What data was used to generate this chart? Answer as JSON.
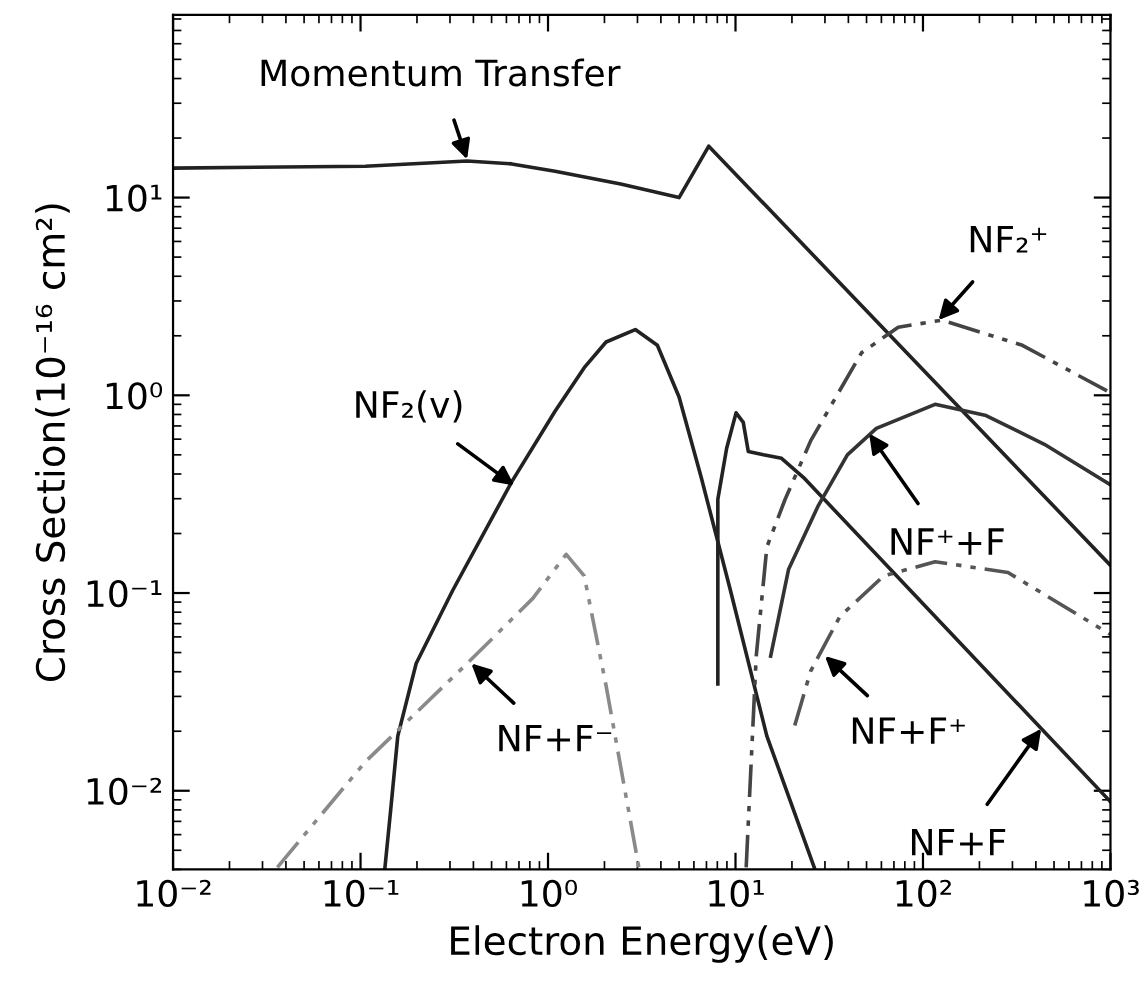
{
  "chart_data": {
    "type": "line",
    "xlabel": "Electron Energy(eV)",
    "ylabel": "Cross Section(10⁻¹⁶ cm²)",
    "log": "xy",
    "grid": false,
    "xlim": [
      0.01,
      1000
    ],
    "ylim": [
      0.004,
      84
    ],
    "xticks": [
      {
        "value": 0.01,
        "label": "10⁻²"
      },
      {
        "value": 0.1,
        "label": "10⁻¹"
      },
      {
        "value": 1,
        "label": "10⁰"
      },
      {
        "value": 10,
        "label": "10¹"
      },
      {
        "value": 100,
        "label": "10²"
      },
      {
        "value": 1000,
        "label": "10³"
      }
    ],
    "yticks": [
      {
        "value": 0.01,
        "label": "10⁻²"
      },
      {
        "value": 0.1,
        "label": "10⁻¹"
      },
      {
        "value": 1,
        "label": "10⁰"
      },
      {
        "value": 10,
        "label": "10¹"
      }
    ],
    "series": [
      {
        "color": "#222222",
        "line_style": "solid",
        "x": [
          0.01,
          0.106,
          0.37,
          0.64,
          1.09,
          2.44,
          5.0,
          7.2,
          1000
        ],
        "values": [
          14.1,
          14.4,
          15.3,
          14.8,
          13.6,
          11.7,
          10.0,
          18.2,
          0.138
        ]
      },
      {
        "color": "#222222",
        "line_style": "solid",
        "x": [
          0.135,
          0.145,
          0.158,
          0.198,
          0.31,
          0.64,
          1.09,
          1.56,
          2.04,
          2.92,
          3.83,
          5.0,
          6.56,
          9.4,
          14.7,
          26.3
        ],
        "values": [
          0.0041,
          0.0081,
          0.0189,
          0.044,
          0.103,
          0.365,
          0.83,
          1.38,
          1.86,
          2.15,
          1.79,
          0.98,
          0.385,
          0.103,
          0.0189,
          0.0041
        ]
      },
      {
        "color": "#222222",
        "line_style": "solid",
        "x": [
          8.05,
          8.05,
          8.97,
          10.07,
          11.0,
          11.7,
          14.1,
          17.6,
          23.0,
          1000
        ],
        "values": [
          0.0347,
          0.298,
          0.54,
          0.815,
          0.73,
          0.52,
          0.5,
          0.48,
          0.385,
          0.0088
        ]
      },
      {
        "color": "#333333",
        "line_style": "solid",
        "x": [
          15.4,
          19.2,
          27.5,
          39.5,
          56.4,
          116,
          217,
          444,
          1000
        ],
        "values": [
          0.048,
          0.132,
          0.274,
          0.5,
          0.68,
          0.9,
          0.79,
          0.565,
          0.353
        ]
      },
      {
        "color": "#444444",
        "line_style": "dashed",
        "x": [
          11.4,
          12.9,
          14.7,
          18.4,
          25.2,
          47,
          73.8,
          126,
          339,
          1000
        ],
        "values": [
          0.0041,
          0.048,
          0.171,
          0.298,
          0.59,
          1.64,
          2.21,
          2.4,
          1.79,
          1.03
        ]
      },
      {
        "color": "#555555",
        "line_style": "dashed",
        "x": [
          20.7,
          25.2,
          36,
          61.7,
          116,
          284,
          1000
        ],
        "values": [
          0.0214,
          0.0404,
          0.076,
          0.122,
          0.144,
          0.127,
          0.0617
        ]
      },
      {
        "color": "#8a8a8a",
        "line_style": "dashed",
        "x": [
          0.036,
          0.106,
          0.37,
          0.83,
          1.25,
          1.56,
          2.04,
          3.05
        ],
        "values": [
          0.0041,
          0.014,
          0.044,
          0.094,
          0.157,
          0.122,
          0.034,
          0.0041
        ]
      }
    ],
    "annotations": [
      {
        "text": "Momentum Transfer",
        "x": 0.37,
        "y": 15.6
      },
      {
        "text": "NF₂⁺",
        "x": 121,
        "y": 2.4
      },
      {
        "text": "NF₂(v)",
        "x": 0.66,
        "y": 0.35
      },
      {
        "text": "NF⁺+F",
        "x": 51.6,
        "y": 0.64
      },
      {
        "text": "NF+F⁻",
        "x": 0.39,
        "y": 0.044
      },
      {
        "text": "NF+F⁺",
        "x": 30,
        "y": 0.048
      },
      {
        "text": "NF+F",
        "x": 427,
        "y": 0.0206
      }
    ]
  }
}
